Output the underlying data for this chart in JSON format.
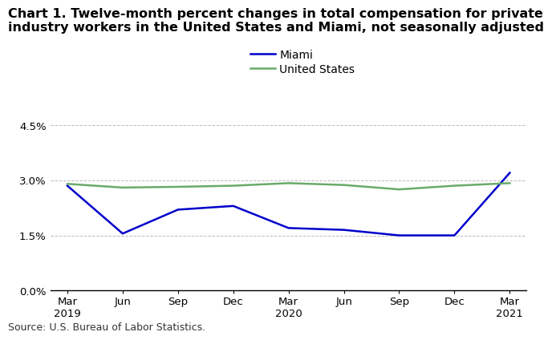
{
  "title_line1": "Chart 1. Twelve-month percent changes in total compensation for private",
  "title_line2": "industry workers in the United States and Miami, not seasonally adjusted",
  "x_labels": [
    "Mar\n2019",
    "Jun",
    "Sep",
    "Dec",
    "Mar\n2020",
    "Jun",
    "Sep",
    "Dec",
    "Mar\n2021"
  ],
  "miami_values": [
    2.85,
    1.55,
    2.2,
    2.3,
    1.7,
    1.65,
    1.5,
    1.5,
    3.2
  ],
  "us_values": [
    2.9,
    2.8,
    2.82,
    2.85,
    2.92,
    2.87,
    2.75,
    2.85,
    2.92
  ],
  "miami_color": "#0000cc",
  "us_color": "#6aaa6a",
  "ylim": [
    0.0,
    4.5
  ],
  "yticks": [
    0.0,
    1.5,
    3.0,
    4.5
  ],
  "ytick_labels": [
    "0.0%",
    "1.5%",
    "3.0%",
    "4.5%"
  ],
  "legend_labels": [
    "Miami",
    "United States"
  ],
  "source_text": "Source: U.S. Bureau of Labor Statistics.",
  "grid_color": "#bbbbbb",
  "background_color": "#ffffff",
  "title_fontsize": 11.5,
  "tick_fontsize": 9.5,
  "legend_fontsize": 10,
  "source_fontsize": 9,
  "line_width": 1.8
}
